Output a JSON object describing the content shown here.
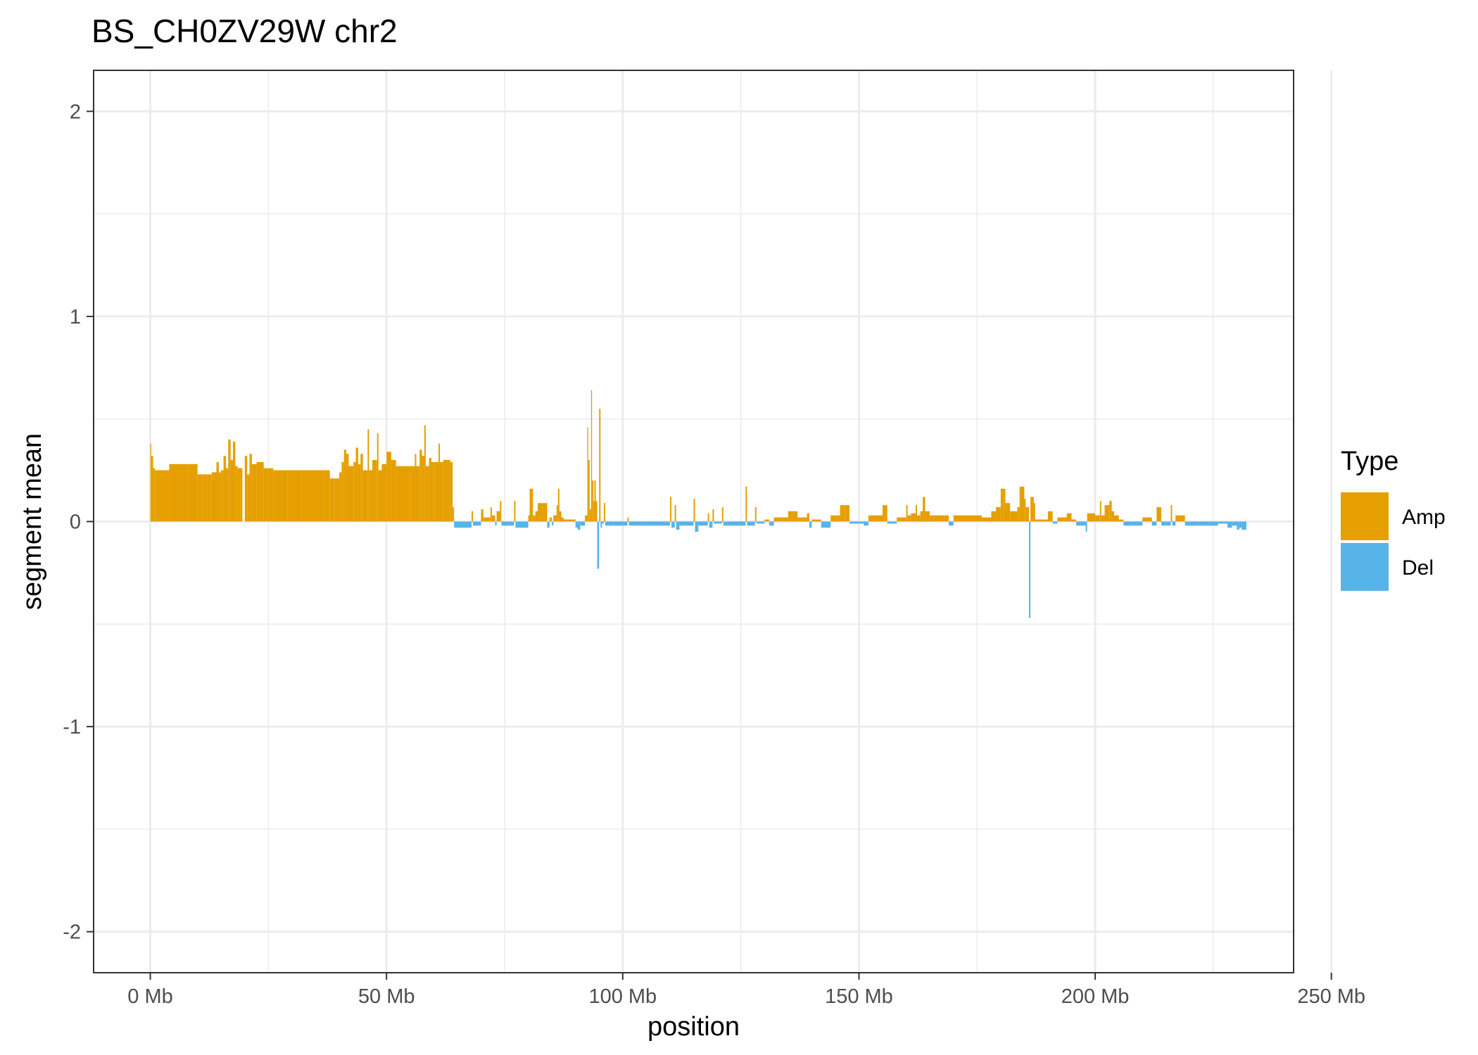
{
  "chart_data": {
    "type": "bar",
    "title": "BS_CH0ZV29W chr2",
    "xlabel": "position",
    "ylabel": "segment mean",
    "xlim": [
      -12,
      242
    ],
    "ylim": [
      -2.2,
      2.2
    ],
    "x_ticks": [
      0,
      50,
      100,
      150,
      200,
      250
    ],
    "x_tick_labels": [
      "0 Mb",
      "50 Mb",
      "100 Mb",
      "150 Mb",
      "200 Mb",
      "250 Mb"
    ],
    "y_ticks": [
      -2,
      -1,
      0,
      1,
      2
    ],
    "y_tick_labels": [
      "-2",
      "-1",
      "0",
      "1",
      "2"
    ],
    "grid": true,
    "legend": {
      "title": "Type",
      "position": "right",
      "entries": [
        {
          "name": "Amp",
          "color": "#E69F00"
        },
        {
          "name": "Del",
          "color": "#56B4E9"
        }
      ]
    },
    "x_unit": "Mb",
    "segments": [
      [
        0.0,
        0.2,
        0.38
      ],
      [
        0.2,
        0.6,
        0.32
      ],
      [
        0.6,
        1.0,
        0.26
      ],
      [
        1.0,
        4.0,
        0.25
      ],
      [
        4.0,
        7.0,
        0.28
      ],
      [
        7.0,
        8.0,
        0.28
      ],
      [
        8.0,
        10.0,
        0.28
      ],
      [
        10.0,
        11.0,
        0.23
      ],
      [
        11.0,
        12.0,
        0.23
      ],
      [
        12.0,
        13.0,
        0.23
      ],
      [
        13.0,
        14.0,
        0.24
      ],
      [
        14.0,
        14.5,
        0.29
      ],
      [
        14.5,
        15.0,
        0.24
      ],
      [
        15.0,
        15.5,
        0.25
      ],
      [
        15.5,
        16.0,
        0.32
      ],
      [
        16.0,
        16.5,
        0.26
      ],
      [
        16.5,
        17.0,
        0.4
      ],
      [
        17.0,
        17.5,
        0.3
      ],
      [
        17.5,
        18.0,
        0.39
      ],
      [
        18.0,
        18.5,
        0.27
      ],
      [
        18.5,
        19.0,
        0.26
      ],
      [
        19.0,
        19.5,
        0.26
      ],
      [
        20.0,
        20.5,
        0.32
      ],
      [
        20.5,
        21.0,
        0.23
      ],
      [
        21.0,
        21.5,
        0.33
      ],
      [
        21.5,
        22.5,
        0.28
      ],
      [
        22.5,
        24.0,
        0.29
      ],
      [
        24.0,
        25.0,
        0.26
      ],
      [
        25.0,
        26.0,
        0.26
      ],
      [
        26.0,
        26.5,
        0.25
      ],
      [
        26.5,
        29.0,
        0.25
      ],
      [
        29.0,
        32.0,
        0.25
      ],
      [
        32.0,
        35.0,
        0.25
      ],
      [
        35.0,
        37.0,
        0.25
      ],
      [
        37.0,
        38.0,
        0.25
      ],
      [
        38.0,
        39.0,
        0.21
      ],
      [
        39.0,
        40.0,
        0.21
      ],
      [
        40.0,
        40.5,
        0.24
      ],
      [
        40.5,
        41.0,
        0.29
      ],
      [
        41.0,
        41.5,
        0.35
      ],
      [
        41.5,
        42.0,
        0.33
      ],
      [
        42.0,
        43.0,
        0.27
      ],
      [
        43.0,
        43.5,
        0.29
      ],
      [
        43.5,
        44.0,
        0.36
      ],
      [
        44.0,
        44.5,
        0.28
      ],
      [
        44.5,
        45.0,
        0.33
      ],
      [
        45.0,
        46.0,
        0.25
      ],
      [
        46.0,
        46.3,
        0.45
      ],
      [
        46.3,
        47.0,
        0.25
      ],
      [
        47.0,
        48.0,
        0.3
      ],
      [
        48.0,
        48.3,
        0.43
      ],
      [
        48.3,
        49.0,
        0.25
      ],
      [
        49.0,
        50.0,
        0.28
      ],
      [
        50.0,
        51.0,
        0.34
      ],
      [
        51.0,
        52.0,
        0.3
      ],
      [
        52.0,
        55.0,
        0.27
      ],
      [
        55.0,
        56.0,
        0.27
      ],
      [
        56.0,
        56.3,
        0.33
      ],
      [
        56.3,
        57.0,
        0.27
      ],
      [
        57.0,
        57.5,
        0.35
      ],
      [
        57.5,
        58.0,
        0.32
      ],
      [
        58.0,
        58.3,
        0.47
      ],
      [
        58.3,
        59.0,
        0.27
      ],
      [
        59.0,
        59.5,
        0.31
      ],
      [
        59.5,
        60.0,
        0.29
      ],
      [
        60.0,
        61.0,
        0.29
      ],
      [
        61.0,
        61.3,
        0.38
      ],
      [
        61.3,
        62.0,
        0.29
      ],
      [
        62.0,
        63.5,
        0.3
      ],
      [
        63.5,
        64.0,
        0.29
      ],
      [
        64.0,
        64.3,
        0.07
      ],
      [
        64.3,
        66.0,
        -0.03
      ],
      [
        66.0,
        68.0,
        -0.03
      ],
      [
        68.0,
        68.3,
        0.05
      ],
      [
        68.3,
        70.0,
        -0.02
      ],
      [
        70.0,
        70.5,
        0.06
      ],
      [
        70.5,
        72.0,
        0.02
      ],
      [
        72.0,
        72.3,
        0.07
      ],
      [
        72.3,
        73.0,
        0.03
      ],
      [
        73.0,
        73.3,
        -0.02
      ],
      [
        73.3,
        74.0,
        0.05
      ],
      [
        74.0,
        74.3,
        0.1
      ],
      [
        74.3,
        76.0,
        -0.02
      ],
      [
        76.0,
        77.0,
        -0.02
      ],
      [
        77.0,
        77.3,
        0.1
      ],
      [
        77.3,
        78.0,
        -0.03
      ],
      [
        78.0,
        80.0,
        -0.03
      ],
      [
        80.0,
        80.3,
        0.03
      ],
      [
        80.3,
        81.0,
        0.16
      ],
      [
        81.0,
        81.5,
        0.03
      ],
      [
        81.5,
        82.0,
        0.05
      ],
      [
        82.0,
        83.0,
        0.09
      ],
      [
        83.0,
        84.0,
        0.09
      ],
      [
        84.0,
        84.5,
        -0.03
      ],
      [
        84.5,
        85.0,
        0.02
      ],
      [
        85.0,
        85.3,
        -0.02
      ],
      [
        85.3,
        86.0,
        0.03
      ],
      [
        86.0,
        86.3,
        0.08
      ],
      [
        86.3,
        86.6,
        0.16
      ],
      [
        86.6,
        87.0,
        0.05
      ],
      [
        87.0,
        87.5,
        0.02
      ],
      [
        87.5,
        90.0,
        0.01
      ],
      [
        90.0,
        90.5,
        -0.03
      ],
      [
        90.5,
        91.0,
        -0.04
      ],
      [
        91.0,
        92.0,
        -0.02
      ],
      [
        92.0,
        92.5,
        0.03
      ],
      [
        92.5,
        92.7,
        0.46
      ],
      [
        92.7,
        93.0,
        0.3
      ],
      [
        93.0,
        93.3,
        0.06
      ],
      [
        93.3,
        93.5,
        0.64
      ],
      [
        93.5,
        93.8,
        0.2
      ],
      [
        93.8,
        94.0,
        0.1
      ],
      [
        94.0,
        94.3,
        0.2
      ],
      [
        94.3,
        94.6,
        0.1
      ],
      [
        94.6,
        95.0,
        -0.23
      ],
      [
        95.0,
        95.3,
        0.55
      ],
      [
        95.3,
        95.6,
        -0.03
      ],
      [
        95.6,
        96.0,
        -0.01
      ],
      [
        96.0,
        96.3,
        0.09
      ],
      [
        96.3,
        97.0,
        -0.02
      ],
      [
        97.0,
        98.0,
        -0.02
      ],
      [
        98.0,
        101.0,
        -0.02
      ],
      [
        101.0,
        101.3,
        0.02
      ],
      [
        101.3,
        104.0,
        -0.02
      ],
      [
        104.0,
        108.0,
        -0.02
      ],
      [
        108.0,
        110.0,
        -0.02
      ],
      [
        110.0,
        110.3,
        0.12
      ],
      [
        110.3,
        111.0,
        -0.03
      ],
      [
        111.0,
        111.3,
        0.08
      ],
      [
        111.3,
        112.0,
        -0.04
      ],
      [
        112.0,
        115.0,
        -0.02
      ],
      [
        115.0,
        115.3,
        0.11
      ],
      [
        115.3,
        116.0,
        -0.05
      ],
      [
        116.0,
        118.0,
        -0.02
      ],
      [
        118.0,
        118.3,
        0.04
      ],
      [
        118.3,
        119.0,
        -0.03
      ],
      [
        119.0,
        119.3,
        0.06
      ],
      [
        119.3,
        121.0,
        -0.01
      ],
      [
        121.0,
        121.3,
        0.07
      ],
      [
        121.3,
        126.0,
        -0.02
      ],
      [
        126.0,
        126.3,
        0.17
      ],
      [
        126.3,
        128.0,
        -0.02
      ],
      [
        128.0,
        128.3,
        0.07
      ],
      [
        128.3,
        130.0,
        -0.01
      ],
      [
        130.0,
        131.0,
        0.01
      ],
      [
        131.0,
        132.0,
        -0.02
      ],
      [
        132.0,
        133.0,
        0.02
      ],
      [
        133.0,
        135.0,
        0.02
      ],
      [
        135.0,
        136.0,
        0.05
      ],
      [
        136.0,
        137.0,
        0.05
      ],
      [
        137.0,
        138.0,
        0.02
      ],
      [
        138.0,
        139.0,
        0.02
      ],
      [
        139.0,
        139.5,
        0.04
      ],
      [
        139.5,
        140.0,
        -0.03
      ],
      [
        140.0,
        142.0,
        0.01
      ],
      [
        142.0,
        143.0,
        -0.03
      ],
      [
        143.0,
        144.0,
        -0.03
      ],
      [
        144.0,
        145.0,
        0.03
      ],
      [
        145.0,
        145.5,
        0.03
      ],
      [
        145.5,
        146.0,
        0.03
      ],
      [
        146.0,
        147.0,
        0.08
      ],
      [
        147.0,
        148.0,
        0.08
      ],
      [
        148.0,
        150.0,
        -0.01
      ],
      [
        150.0,
        151.0,
        -0.01
      ],
      [
        151.0,
        152.0,
        -0.02
      ],
      [
        152.0,
        153.0,
        0.03
      ],
      [
        153.0,
        154.0,
        0.03
      ],
      [
        154.0,
        155.0,
        0.03
      ],
      [
        155.0,
        155.5,
        0.08
      ],
      [
        155.5,
        156.0,
        0.08
      ],
      [
        156.0,
        158.0,
        -0.01
      ],
      [
        158.0,
        160.0,
        0.02
      ],
      [
        160.0,
        160.3,
        0.08
      ],
      [
        160.3,
        161.0,
        0.03
      ],
      [
        161.0,
        162.0,
        0.04
      ],
      [
        162.0,
        162.3,
        0.08
      ],
      [
        162.3,
        163.0,
        0.03
      ],
      [
        163.0,
        163.5,
        0.05
      ],
      [
        163.5,
        164.0,
        0.12
      ],
      [
        164.0,
        165.0,
        0.05
      ],
      [
        165.0,
        166.0,
        0.03
      ],
      [
        166.0,
        168.0,
        0.03
      ],
      [
        168.0,
        169.0,
        0.03
      ],
      [
        169.0,
        170.0,
        -0.02
      ],
      [
        170.0,
        172.0,
        0.03
      ],
      [
        172.0,
        174.0,
        0.03
      ],
      [
        174.0,
        176.0,
        0.03
      ],
      [
        176.0,
        178.0,
        0.02
      ],
      [
        178.0,
        179.0,
        0.05
      ],
      [
        179.0,
        180.0,
        0.07
      ],
      [
        180.0,
        180.5,
        0.16
      ],
      [
        180.5,
        181.0,
        0.16
      ],
      [
        181.0,
        182.0,
        0.09
      ],
      [
        182.0,
        183.0,
        0.05
      ],
      [
        183.0,
        183.5,
        0.05
      ],
      [
        183.5,
        184.0,
        0.07
      ],
      [
        184.0,
        185.0,
        0.17
      ],
      [
        185.0,
        185.3,
        0.11
      ],
      [
        185.3,
        186.0,
        0.07
      ],
      [
        186.0,
        186.3,
        -0.47
      ],
      [
        186.3,
        187.0,
        0.12
      ],
      [
        187.0,
        187.3,
        0.09
      ],
      [
        187.3,
        188.0,
        0.01
      ],
      [
        188.0,
        190.0,
        0.01
      ],
      [
        190.0,
        191.0,
        0.05
      ],
      [
        191.0,
        192.0,
        -0.01
      ],
      [
        192.0,
        193.0,
        0.02
      ],
      [
        193.0,
        194.0,
        0.02
      ],
      [
        194.0,
        195.0,
        0.04
      ],
      [
        195.0,
        196.0,
        0.01
      ],
      [
        196.0,
        197.0,
        -0.02
      ],
      [
        197.0,
        198.0,
        -0.02
      ],
      [
        198.0,
        198.3,
        -0.05
      ],
      [
        198.3,
        200.0,
        0.04
      ],
      [
        200.0,
        201.0,
        0.03
      ],
      [
        201.0,
        201.3,
        0.1
      ],
      [
        201.3,
        202.0,
        0.03
      ],
      [
        202.0,
        203.0,
        0.08
      ],
      [
        203.0,
        203.5,
        0.1
      ],
      [
        203.5,
        204.0,
        0.05
      ],
      [
        204.0,
        205.0,
        0.03
      ],
      [
        205.0,
        206.0,
        0.01
      ],
      [
        206.0,
        208.0,
        -0.02
      ],
      [
        208.0,
        210.0,
        -0.02
      ],
      [
        210.0,
        212.0,
        0.02
      ],
      [
        212.0,
        213.0,
        -0.02
      ],
      [
        213.0,
        214.0,
        0.07
      ],
      [
        214.0,
        215.0,
        -0.02
      ],
      [
        215.0,
        216.0,
        -0.02
      ],
      [
        216.0,
        216.3,
        0.08
      ],
      [
        216.3,
        217.0,
        -0.02
      ],
      [
        217.0,
        218.0,
        0.03
      ],
      [
        218.0,
        219.0,
        0.03
      ],
      [
        219.0,
        220.0,
        -0.02
      ],
      [
        220.0,
        222.0,
        -0.02
      ],
      [
        222.0,
        224.0,
        -0.02
      ],
      [
        224.0,
        226.0,
        -0.02
      ],
      [
        226.0,
        228.0,
        -0.01
      ],
      [
        228.0,
        229.0,
        -0.03
      ],
      [
        229.0,
        230.0,
        -0.02
      ],
      [
        230.0,
        230.5,
        -0.04
      ],
      [
        230.5,
        231.0,
        -0.03
      ],
      [
        231.0,
        232.0,
        -0.04
      ]
    ]
  }
}
